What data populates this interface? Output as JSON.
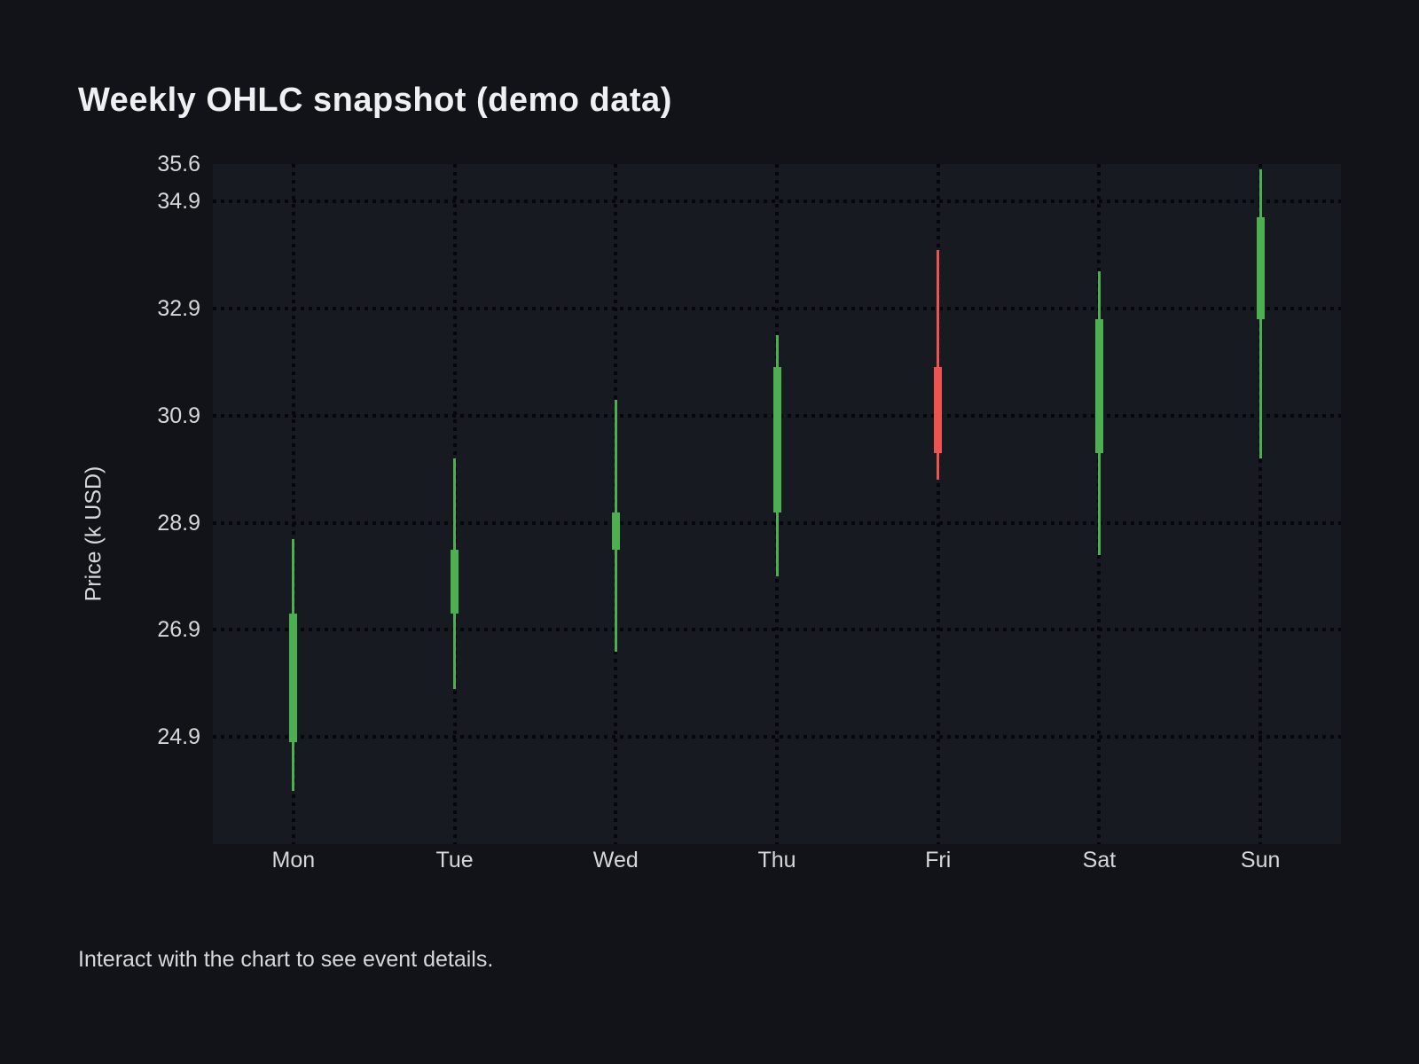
{
  "header": {
    "title": "Weekly OHLC snapshot (demo data)"
  },
  "footer": {
    "note": "Interact with the chart to see event details."
  },
  "chart_data": {
    "type": "candlestick",
    "title": "Weekly OHLC snapshot (demo data)",
    "xlabel": "",
    "ylabel": "Price (k USD)",
    "categories": [
      "Mon",
      "Tue",
      "Wed",
      "Thu",
      "Fri",
      "Sat",
      "Sun"
    ],
    "series": [
      {
        "name": "OHLC",
        "points": [
          {
            "day": "Mon",
            "open": 24.8,
            "high": 28.6,
            "low": 23.9,
            "close": 27.2,
            "direction": "up"
          },
          {
            "day": "Tue",
            "open": 27.2,
            "high": 30.1,
            "low": 25.8,
            "close": 28.4,
            "direction": "up"
          },
          {
            "day": "Wed",
            "open": 28.4,
            "high": 31.2,
            "low": 26.5,
            "close": 29.1,
            "direction": "up"
          },
          {
            "day": "Thu",
            "open": 29.1,
            "high": 32.4,
            "low": 27.9,
            "close": 31.8,
            "direction": "up"
          },
          {
            "day": "Fri",
            "open": 31.8,
            "high": 34.0,
            "low": 29.7,
            "close": 30.2,
            "direction": "down"
          },
          {
            "day": "Sat",
            "open": 30.2,
            "high": 33.6,
            "low": 28.3,
            "close": 32.7,
            "direction": "up"
          },
          {
            "day": "Sun",
            "open": 32.7,
            "high": 35.5,
            "low": 30.1,
            "close": 34.6,
            "direction": "up"
          }
        ]
      }
    ],
    "ylim": [
      22.9,
      35.6
    ],
    "yticks": [
      {
        "label": "35.6",
        "value": 35.6,
        "gridline": false
      },
      {
        "label": "34.9",
        "value": 34.9,
        "gridline": true
      },
      {
        "label": "32.9",
        "value": 32.9,
        "gridline": true
      },
      {
        "label": "30.9",
        "value": 30.9,
        "gridline": true
      },
      {
        "label": "28.9",
        "value": 28.9,
        "gridline": true
      },
      {
        "label": "26.9",
        "value": 26.9,
        "gridline": true
      },
      {
        "label": "24.9",
        "value": 24.9,
        "gridline": true
      }
    ],
    "grid": "dotted",
    "legend": "none",
    "colors": {
      "up": "#4caf50",
      "down": "#ef5350",
      "grid": "#05070c",
      "plot_background": "#171a21",
      "page_background": "#111319",
      "title_text": "#eef0f2",
      "label_text": "#d6d7d9"
    }
  }
}
